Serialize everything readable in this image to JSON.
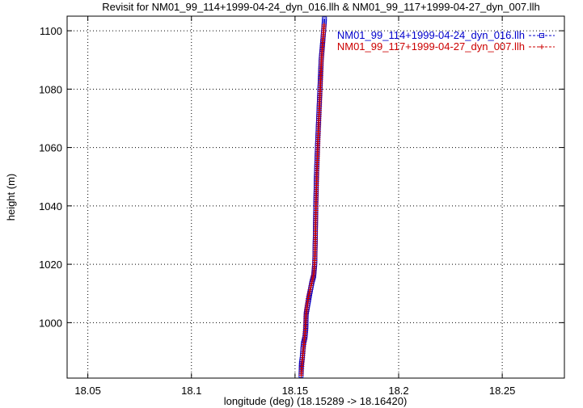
{
  "chart_data": {
    "type": "line",
    "title": "Revisit for NM01_99_114+1999-04-24_dyn_016.llh & NM01_99_117+1999-04-27_dyn_007.llh",
    "xlabel": "longitude (deg) (18.15289 -> 18.16420)",
    "ylabel": "height (m)",
    "xlim": [
      18.04,
      18.28
    ],
    "ylim": [
      981,
      1105
    ],
    "x_ticks": [
      18.05,
      18.1,
      18.15,
      18.2,
      18.25
    ],
    "x_tick_labels": [
      "18.05",
      "18.1",
      "18.15",
      "18.2",
      "18.25"
    ],
    "y_ticks": [
      1000,
      1020,
      1040,
      1060,
      1080,
      1100
    ],
    "y_tick_labels": [
      "1000",
      "1020",
      "1040",
      "1060",
      "1080",
      "1100"
    ],
    "grid": true,
    "legend_position": "top-right",
    "series": [
      {
        "name": "NM01_99_114+1999-04-24_dyn_016.llh",
        "color": "#0000cc",
        "marker": "square",
        "x": [
          18.1529,
          18.1531,
          18.1535,
          18.1538,
          18.1541,
          18.1548,
          18.1552,
          18.1554,
          18.1561,
          18.1571,
          18.1582,
          18.159,
          18.1595,
          18.1598,
          18.16,
          18.1603,
          18.1608,
          18.1614,
          18.162,
          18.1626,
          18.1632,
          18.1638,
          18.1642
        ],
        "y": [
          982,
          986,
          988,
          991,
          993,
          995,
          998,
          1003,
          1006,
          1010,
          1014,
          1016,
          1020,
          1030,
          1040,
          1050,
          1060,
          1070,
          1080,
          1090,
          1095,
          1100,
          1104
        ]
      },
      {
        "name": "NM01_99_117+1999-04-27_dyn_007.llh",
        "color": "#cc0000",
        "marker": "plus",
        "x": [
          18.153,
          18.1533,
          18.1537,
          18.1541,
          18.1545,
          18.1549,
          18.1552,
          18.1558,
          18.1565,
          18.1575,
          18.1585,
          18.1591,
          18.1596,
          18.1599,
          18.1602,
          18.1606,
          18.1611,
          18.1617,
          18.1623,
          18.1628,
          18.1632,
          18.1636,
          18.164
        ],
        "y": [
          982,
          985,
          988,
          991,
          994,
          997,
          1002,
          1006,
          1009,
          1012,
          1015,
          1017,
          1022,
          1032,
          1042,
          1052,
          1062,
          1072,
          1082,
          1090,
          1094,
          1098,
          1102
        ]
      }
    ]
  }
}
